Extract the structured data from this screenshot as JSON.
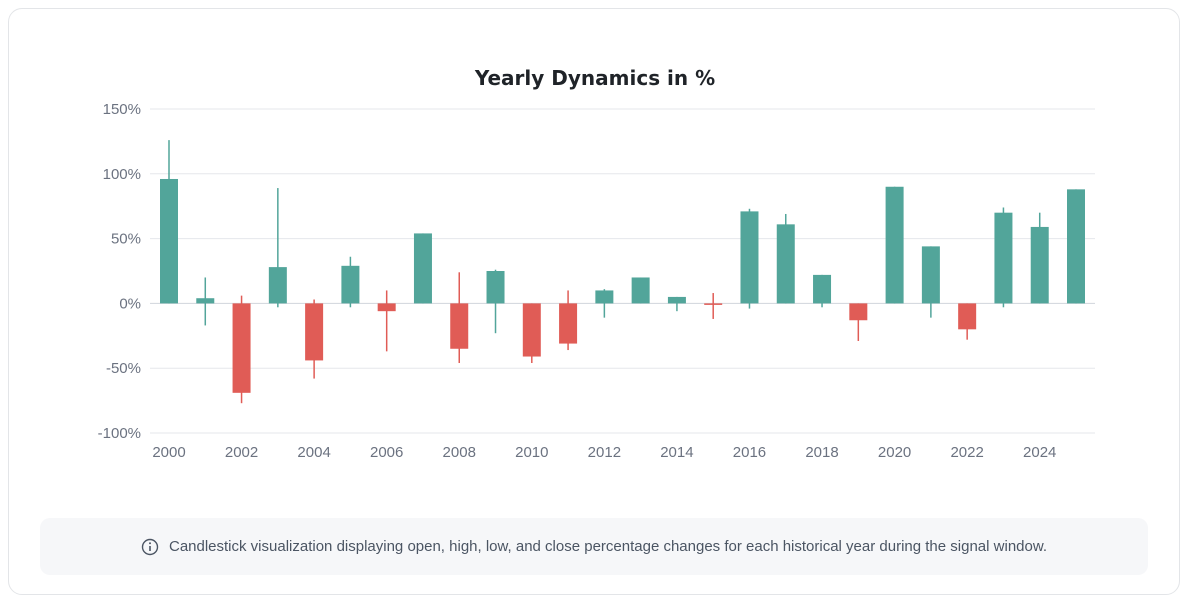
{
  "chart_data": {
    "type": "candlestick",
    "title": "Yearly Dynamics in %",
    "ylim": [
      -100,
      150
    ],
    "yticks": [
      150,
      100,
      50,
      0,
      -50,
      -100
    ],
    "ytick_labels": [
      "150%",
      "100%",
      "50%",
      "0%",
      "-50%",
      "-100%"
    ],
    "xtick_labels": [
      "2000",
      "2002",
      "2004",
      "2006",
      "2008",
      "2010",
      "2012",
      "2014",
      "2016",
      "2018",
      "2020",
      "2022",
      "2024"
    ],
    "grid": true,
    "colors": {
      "up": "#52a59a",
      "down": "#e05c56"
    },
    "candles": [
      {
        "year": 2000,
        "open": 0,
        "close": 96,
        "high": 126,
        "low": 0
      },
      {
        "year": 2001,
        "open": 0,
        "close": 4,
        "high": 20,
        "low": -17
      },
      {
        "year": 2002,
        "open": 0,
        "close": -69,
        "high": 6,
        "low": -77
      },
      {
        "year": 2003,
        "open": 0,
        "close": 28,
        "high": 89,
        "low": -3
      },
      {
        "year": 2004,
        "open": 0,
        "close": -44,
        "high": 3,
        "low": -58
      },
      {
        "year": 2005,
        "open": 0,
        "close": 29,
        "high": 36,
        "low": -3
      },
      {
        "year": 2006,
        "open": 0,
        "close": -6,
        "high": 10,
        "low": -37
      },
      {
        "year": 2007,
        "open": 0,
        "close": 54,
        "high": 54,
        "low": 0
      },
      {
        "year": 2008,
        "open": 0,
        "close": -35,
        "high": 24,
        "low": -46
      },
      {
        "year": 2009,
        "open": 0,
        "close": 25,
        "high": 26,
        "low": -23
      },
      {
        "year": 2010,
        "open": 0,
        "close": -41,
        "high": 0,
        "low": -46
      },
      {
        "year": 2011,
        "open": 0,
        "close": -31,
        "high": 10,
        "low": -36
      },
      {
        "year": 2012,
        "open": 0,
        "close": 10,
        "high": 11,
        "low": -11
      },
      {
        "year": 2013,
        "open": 0,
        "close": 20,
        "high": 20,
        "low": 0
      },
      {
        "year": 2014,
        "open": 0,
        "close": 5,
        "high": 5,
        "low": -6
      },
      {
        "year": 2015,
        "open": 0,
        "close": -1,
        "high": 8,
        "low": -12
      },
      {
        "year": 2016,
        "open": 0,
        "close": 71,
        "high": 73,
        "low": -4
      },
      {
        "year": 2017,
        "open": 0,
        "close": 61,
        "high": 69,
        "low": 0
      },
      {
        "year": 2018,
        "open": 0,
        "close": 22,
        "high": 22,
        "low": -3
      },
      {
        "year": 2019,
        "open": 0,
        "close": -13,
        "high": 0,
        "low": -29
      },
      {
        "year": 2020,
        "open": 0,
        "close": 90,
        "high": 90,
        "low": 0
      },
      {
        "year": 2021,
        "open": 0,
        "close": 44,
        "high": 44,
        "low": -11
      },
      {
        "year": 2022,
        "open": 0,
        "close": -20,
        "high": 0,
        "low": -28
      },
      {
        "year": 2023,
        "open": 0,
        "close": 70,
        "high": 74,
        "low": -3
      },
      {
        "year": 2024,
        "open": 0,
        "close": 59,
        "high": 70,
        "low": 0
      },
      {
        "year": 2025,
        "open": 0,
        "close": 88,
        "high": 88,
        "low": 0
      }
    ]
  },
  "note": {
    "icon": "info-icon",
    "text": "Candlestick visualization displaying open, high, low, and close percentage changes for each historical year during the signal window."
  }
}
